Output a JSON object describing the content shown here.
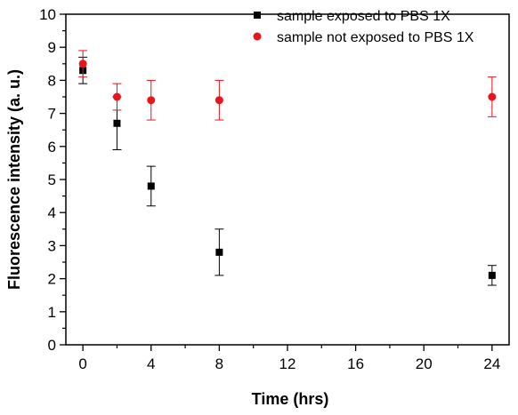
{
  "chart_data": {
    "type": "scatter",
    "xlabel": "Time (hrs)",
    "ylabel": "Fluorescence intensity (a. u.)",
    "xlim": [
      -1,
      25
    ],
    "ylim": [
      0,
      10
    ],
    "xticks": [
      "0",
      "4",
      "8",
      "12",
      "16",
      "20",
      "24"
    ],
    "yticks": [
      "0",
      "1",
      "2",
      "3",
      "4",
      "5",
      "6",
      "7",
      "8",
      "9",
      "10"
    ],
    "legend_position": "top-right",
    "series": [
      {
        "name": "sample exposed to PBS 1X",
        "color": "#000000",
        "marker": "square",
        "x": [
          0,
          2,
          4,
          8,
          24
        ],
        "y": [
          8.3,
          6.7,
          4.8,
          2.8,
          2.1
        ],
        "err": [
          0.4,
          0.8,
          0.6,
          0.7,
          0.3
        ]
      },
      {
        "name": "sample not exposed to PBS 1X",
        "color": "#e8161c",
        "marker": "circle",
        "x": [
          0,
          2,
          4,
          8,
          24
        ],
        "y": [
          8.5,
          7.5,
          7.4,
          7.4,
          7.5
        ],
        "err": [
          0.4,
          0.4,
          0.6,
          0.6,
          0.6
        ]
      }
    ]
  }
}
